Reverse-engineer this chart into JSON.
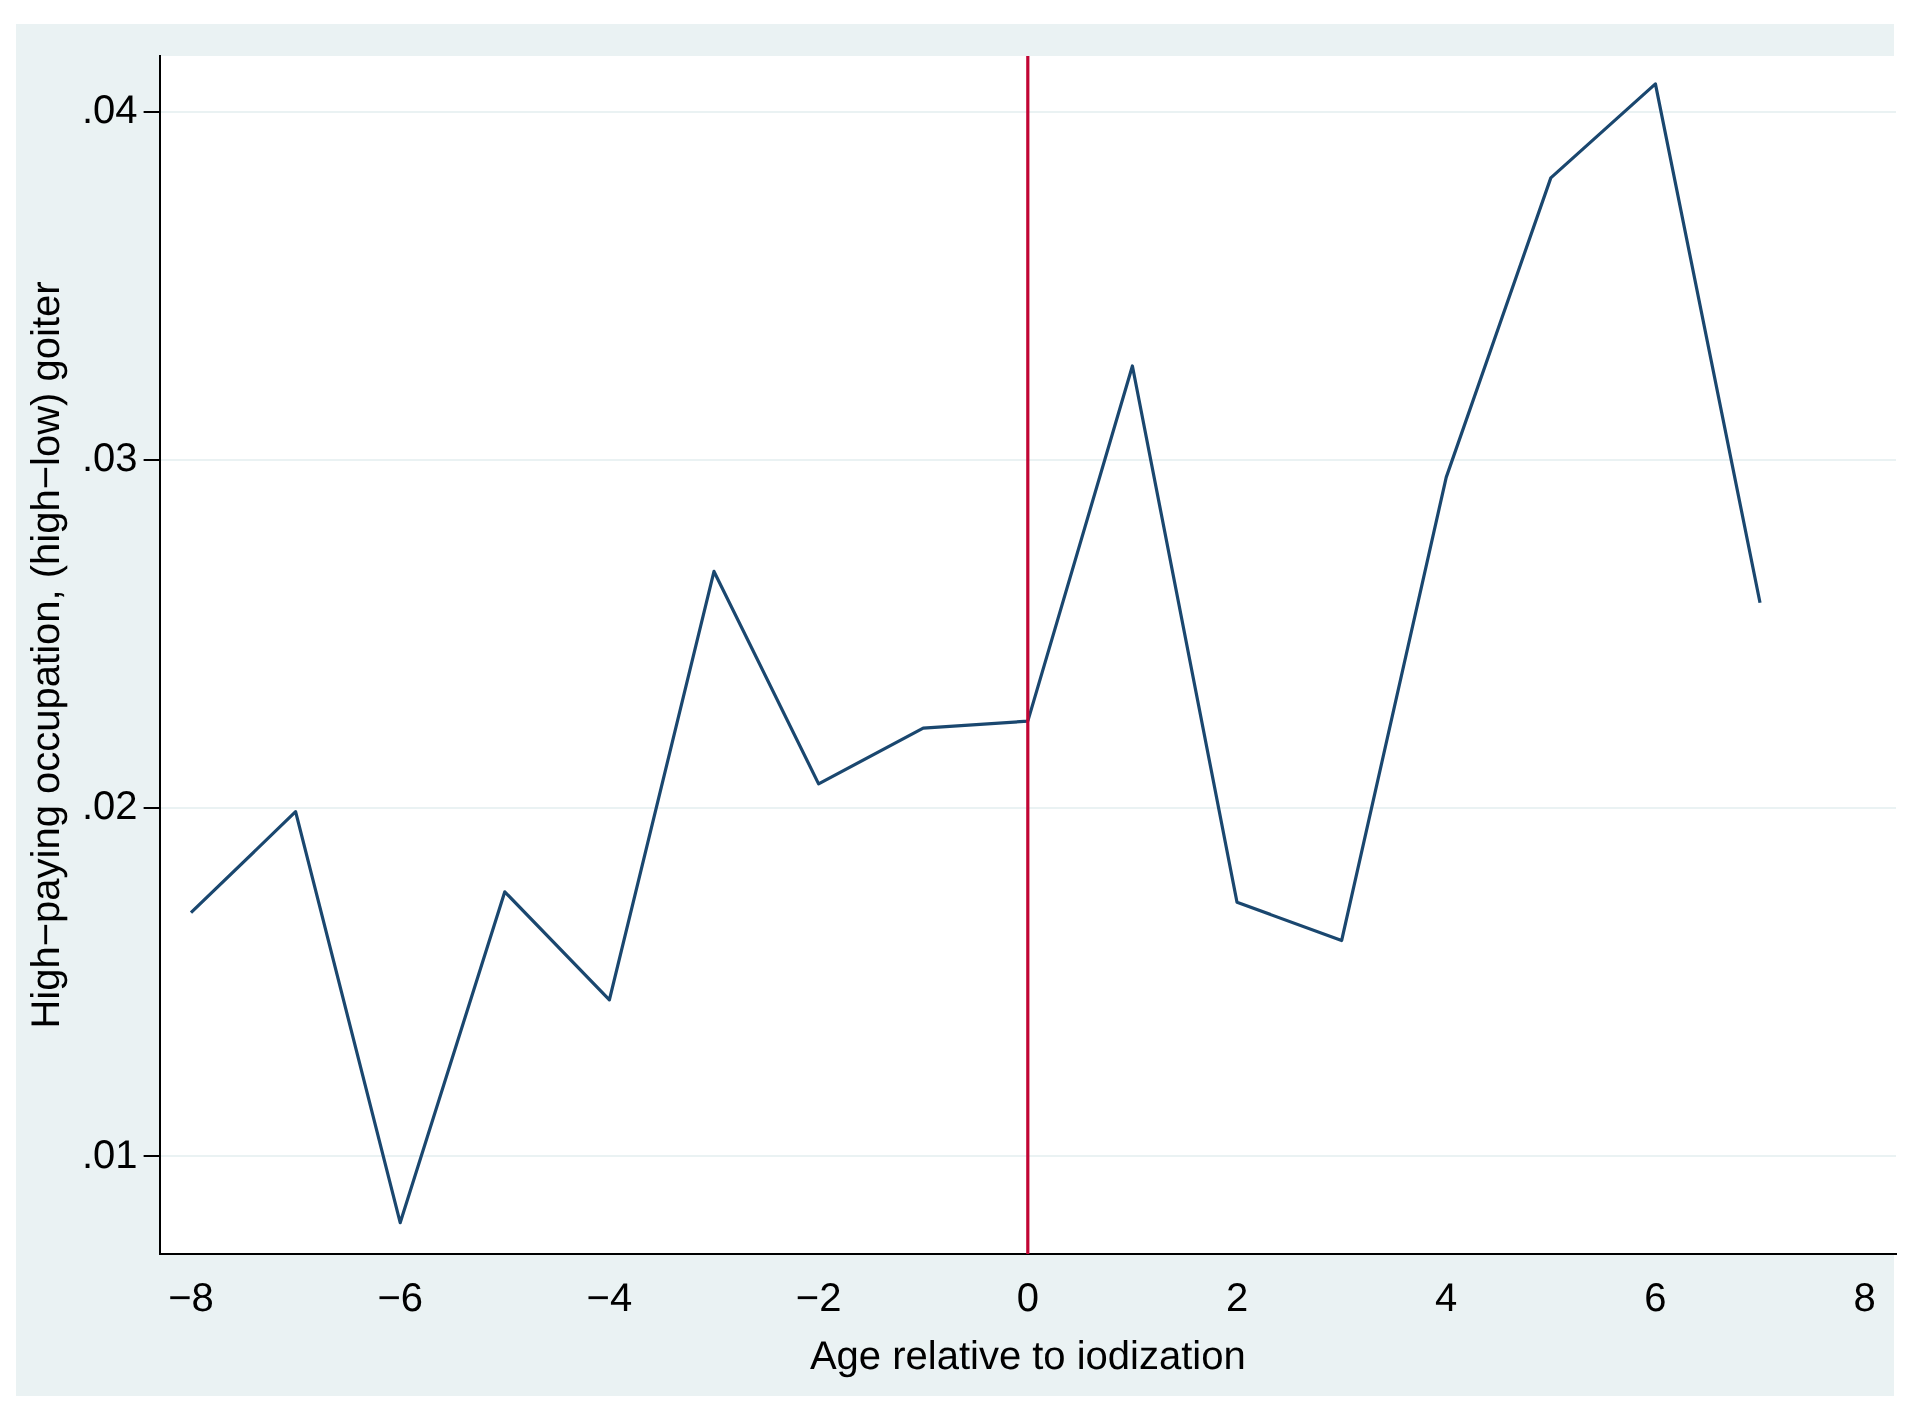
{
  "chart_data": {
    "type": "line",
    "xlabel": "Age relative to iodization",
    "ylabel": "High−paying occupation, (high−low) goiter",
    "x": [
      -8,
      -7,
      -6,
      -5,
      -4,
      -3,
      -2,
      -1,
      0,
      1,
      2,
      3,
      4,
      5,
      6,
      7
    ],
    "series": [
      {
        "color": "#1a476f",
        "values": [
          0.017,
          0.0199,
          0.0081,
          0.0176,
          0.0145,
          0.0268,
          0.0207,
          0.0223,
          0.0225,
          0.0327,
          0.0173,
          0.0162,
          0.0295,
          0.0381,
          0.0408,
          0.0259
        ]
      }
    ],
    "xlim": [
      -8.3,
      8.3
    ],
    "ylim": [
      0.0072,
      0.0416
    ],
    "xticks": [
      {
        "value": -8,
        "label": "−8"
      },
      {
        "value": -6,
        "label": "−6"
      },
      {
        "value": -4,
        "label": "−4"
      },
      {
        "value": -2,
        "label": "−2"
      },
      0,
      2,
      4,
      6,
      8
    ],
    "yticks": [
      {
        "value": 0.01,
        "label": ".01"
      },
      {
        "value": 0.02,
        "label": ".02"
      },
      {
        "value": 0.03,
        "label": ".03"
      },
      {
        "value": 0.04,
        "label": ".04"
      }
    ],
    "ref_lines": [
      {
        "axis": "x",
        "value": 0,
        "color": "#c10534"
      }
    ],
    "grid": "y",
    "marker": "none",
    "legend": false
  }
}
